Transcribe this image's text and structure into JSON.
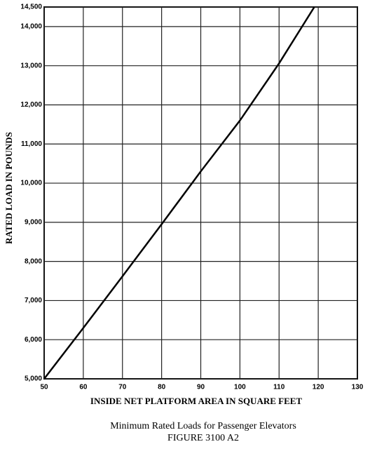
{
  "chart_data": {
    "type": "line",
    "x_label": "INSIDE NET PLATFORM AREA IN SQUARE FEET",
    "y_label": "RATED LOAD IN POUNDS",
    "caption": [
      "Minimum Rated Loads for Passenger Elevators",
      "FIGURE 3100 A2"
    ],
    "x": [
      50,
      60,
      70,
      80,
      90,
      100,
      110,
      119
    ],
    "series": [
      {
        "color": "#000000",
        "values": [
          5000,
          6300,
          7620,
          8950,
          10300,
          11600,
          13060,
          14500
        ]
      }
    ],
    "xlim": [
      50,
      130
    ],
    "xticks": [
      50,
      60,
      70,
      80,
      90,
      100,
      110,
      120,
      130
    ],
    "ylim": [
      5000,
      14500
    ],
    "yticks": [
      {
        "value": 5000,
        "label": "5,000"
      },
      {
        "value": 6000,
        "label": "6,000"
      },
      {
        "value": 7000,
        "label": "7,000"
      },
      {
        "value": 8000,
        "label": "8,000"
      },
      {
        "value": 9000,
        "label": "9,000"
      },
      {
        "value": 10000,
        "label": "10,000"
      },
      {
        "value": 11000,
        "label": "11,000"
      },
      {
        "value": 12000,
        "label": "12,000"
      },
      {
        "value": 13000,
        "label": "13,000"
      },
      {
        "value": 14000,
        "label": "14,000"
      },
      {
        "value": 14500,
        "label": "14,500"
      }
    ],
    "grid": true
  }
}
